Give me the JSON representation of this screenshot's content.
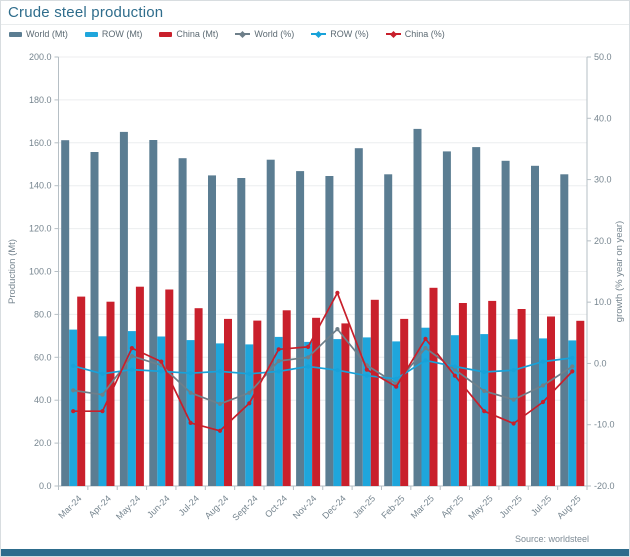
{
  "header": {
    "title": "Crude steel production"
  },
  "source_note": "Source: worldsteel",
  "colors": {
    "title": "#2f6d8c",
    "legend_text": "#5c6a73",
    "axis_text": "#76858f",
    "grid": "#eceeef",
    "axis_line": "#b6bfc5",
    "world_bar": "#5b7d92",
    "row_bar": "#1fa6dc",
    "china_bar": "#c9202c",
    "world_line": "#6e7f8a",
    "row_line": "#18a2d9",
    "china_line": "#c81f2b",
    "footer_bar": "#2d6c8c"
  },
  "legend": {
    "items": [
      {
        "label": "World (Mt)",
        "kind": "bar",
        "color_key": "world_bar"
      },
      {
        "label": "ROW (Mt)",
        "kind": "bar",
        "color_key": "row_bar"
      },
      {
        "label": "China (Mt)",
        "kind": "bar",
        "color_key": "china_bar"
      },
      {
        "label": "World (%)",
        "kind": "line",
        "color_key": "world_line"
      },
      {
        "label": "ROW (%)",
        "kind": "line",
        "color_key": "row_line"
      },
      {
        "label": "China (%)",
        "kind": "line",
        "color_key": "china_line"
      }
    ]
  },
  "chart_data": {
    "type": "bar-line-combo",
    "title": "Crude steel production",
    "grid": true,
    "legend_position": "top",
    "categories": [
      "Mar-24",
      "Apr-24",
      "May-24",
      "Jun-24",
      "Jul-24",
      "Aug-24",
      "Sept-24",
      "Oct-24",
      "Nov-24",
      "Dec-24",
      "Jan-25",
      "Feb-25",
      "Mar-25",
      "Apr-25",
      "May-25",
      "Jun-25",
      "Jul-25",
      "Aug-25"
    ],
    "bar_series": [
      {
        "name": "World (Mt)",
        "axis": "left",
        "color_key": "world_bar",
        "values": [
          161.2,
          155.7,
          165.1,
          161.3,
          152.8,
          144.8,
          143.6,
          152.1,
          146.8,
          144.5,
          157.5,
          145.3,
          166.5,
          156.0,
          158.0,
          151.6,
          149.3,
          145.3
        ]
      },
      {
        "name": "ROW (Mt)",
        "axis": "left",
        "color_key": "row_bar",
        "values": [
          72.9,
          69.8,
          72.2,
          69.7,
          68.0,
          66.5,
          66.0,
          69.5,
          67.2,
          68.5,
          69.3,
          67.4,
          73.8,
          70.3,
          70.8,
          68.4,
          68.8,
          67.9
        ]
      },
      {
        "name": "China (Mt)",
        "axis": "left",
        "color_key": "china_bar",
        "values": [
          88.3,
          85.9,
          92.9,
          91.6,
          82.9,
          77.9,
          77.1,
          81.9,
          78.4,
          75.8,
          86.8,
          77.9,
          92.4,
          85.3,
          86.3,
          82.5,
          79.0,
          77.0
        ]
      }
    ],
    "line_series": [
      {
        "name": "World (%)",
        "axis": "right",
        "color_key": "world_line",
        "values": [
          -4.4,
          -5.1,
          1.2,
          -0.3,
          -4.8,
          -6.6,
          -4.8,
          0.4,
          1.0,
          5.6,
          -0.3,
          -3.3,
          2.5,
          -1.0,
          -4.5,
          -5.9,
          -3.6,
          -0.5
        ]
      },
      {
        "name": "ROW (%)",
        "axis": "right",
        "color_key": "row_line",
        "values": [
          -0.4,
          -1.7,
          -1.0,
          -1.3,
          -1.6,
          -1.3,
          -1.7,
          -1.3,
          -0.5,
          -1.1,
          -2.0,
          -2.5,
          0.5,
          -0.5,
          -1.4,
          -1.1,
          0.3,
          0.9
        ]
      },
      {
        "name": "China (%)",
        "axis": "right",
        "color_key": "china_line",
        "values": [
          -7.8,
          -7.8,
          2.5,
          0.3,
          -9.7,
          -11.0,
          -6.5,
          2.3,
          2.7,
          11.5,
          -1.0,
          -3.8,
          4.0,
          -2.0,
          -7.8,
          -9.8,
          -6.3,
          -1.3
        ]
      }
    ],
    "left_axis": {
      "label": "Production (Mt)",
      "min": 0,
      "max": 200,
      "step": 20,
      "ticks": [
        "0.0",
        "20.0",
        "40.0",
        "60.0",
        "80.0",
        "100.0",
        "120.0",
        "140.0",
        "160.0",
        "180.0",
        "200.0"
      ]
    },
    "right_axis": {
      "label": "growth (% year on year)",
      "min": -20,
      "max": 50,
      "step": 10,
      "ticks": [
        "-20.0",
        "-10.0",
        "0.0",
        "10.0",
        "20.0",
        "30.0",
        "40.0",
        "50.0"
      ]
    }
  }
}
